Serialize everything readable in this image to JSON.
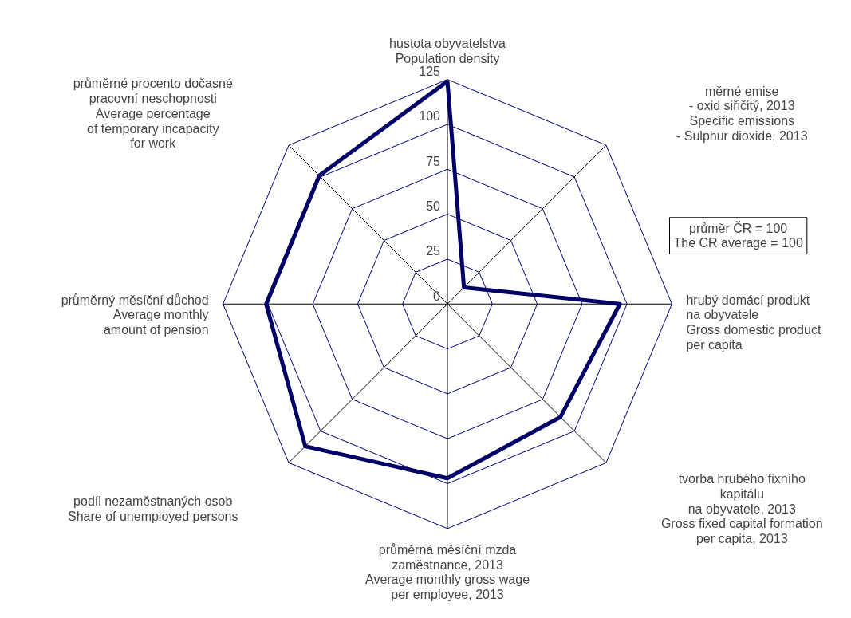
{
  "chart_data": {
    "type": "radar",
    "categories": [
      "hustota obyvatelstva\nPopulation density",
      "měrné emise\n- oxid siřičitý, 2013\nSpecific emissions\n- Sulphur dioxide, 2013",
      "hrubý domácí produkt\nna obyvatele\nGross domestic product\nper capita",
      "tvorba hrubého fixního\nkapitálu\nna obyvatele, 2013\nGross fixed capital formation\nper capita, 2013",
      "průměrná měsíční mzda\nzaměstnance, 2013\nAverage monthly gross wage\nper employee, 2013",
      "podíl nezaměstnaných osob\nShare of unemployed persons",
      "průměrný měsíční důchod\nAverage monthly\namount of pension",
      "průměrné procento dočasné\npracovní neschopnosti\nAverage percentage\nof temporary incapacity\nfor work"
    ],
    "series": [
      {
        "color": "#000066",
        "values": [
          124,
          13,
          96,
          89,
          97,
          112,
          101,
          101
        ]
      }
    ],
    "ylim": [
      0,
      125
    ],
    "yticks": [
      0,
      25,
      50,
      75,
      100,
      125
    ],
    "grid": true,
    "marker": "none",
    "line_style": "solid",
    "annotations": [
      "průměr ČR = 100\nThe CR average = 100"
    ]
  }
}
